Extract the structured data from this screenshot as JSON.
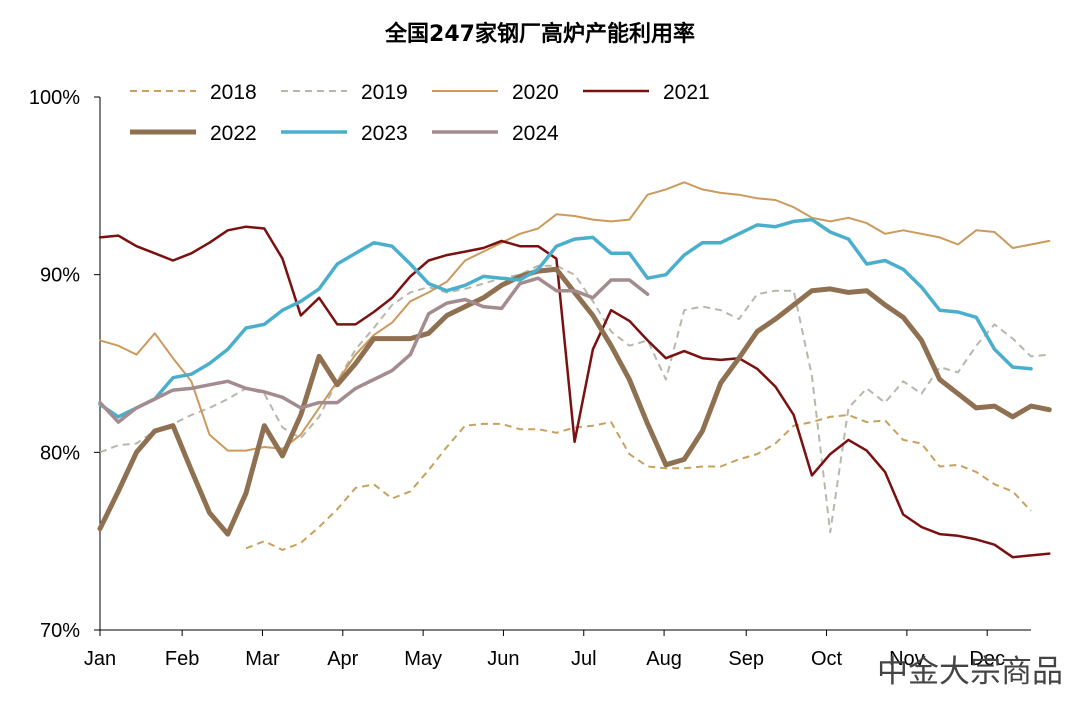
{
  "chart_data": {
    "type": "line",
    "title": "全国247家钢厂高炉产能利用率",
    "xlabel": "",
    "ylabel": "",
    "ylim": [
      70,
      100
    ],
    "yticks": [
      70,
      80,
      90,
      100
    ],
    "ytick_labels": [
      "70%",
      "80%",
      "90%",
      "100%"
    ],
    "xlim": [
      1,
      52
    ],
    "month_ticks": [
      {
        "label": "Jan",
        "week": 1
      },
      {
        "label": "Feb",
        "week": 5.5
      },
      {
        "label": "Mar",
        "week": 9.9
      },
      {
        "label": "Apr",
        "week": 14.3
      },
      {
        "label": "May",
        "week": 18.7
      },
      {
        "label": "Jun",
        "week": 23.1
      },
      {
        "label": "Jul",
        "week": 27.5
      },
      {
        "label": "Aug",
        "week": 31.9
      },
      {
        "label": "Sep",
        "week": 36.4
      },
      {
        "label": "Oct",
        "week": 40.8
      },
      {
        "label": "Nov",
        "week": 45.2
      },
      {
        "label": "Dec",
        "week": 49.6
      }
    ],
    "legend_position": "top",
    "series": [
      {
        "name": "2018",
        "color": "#c9a15e",
        "width": 2,
        "dash": "7,5",
        "x_start": 9,
        "values": [
          74.6,
          75.0,
          74.5,
          74.9,
          75.8,
          76.8,
          78.0,
          78.2,
          77.4,
          77.8,
          79.0,
          80.3,
          81.5,
          81.6,
          81.6,
          81.3,
          81.3,
          81.1,
          81.4,
          81.5,
          81.7,
          79.9,
          79.2,
          79.1,
          79.1,
          79.2,
          79.2,
          79.6,
          79.9,
          80.5,
          81.5,
          81.7,
          82.0,
          82.1,
          81.7,
          81.8,
          80.7,
          80.5,
          79.2,
          79.3,
          78.9,
          78.2,
          77.8,
          76.7
        ]
      },
      {
        "name": "2019",
        "color": "#b9b7ac",
        "width": 2,
        "dash": "7,5",
        "x_start": 1,
        "values": [
          80.0,
          80.4,
          80.5,
          81.2,
          81.6,
          82.1,
          82.5,
          83.0,
          83.6,
          83.3,
          81.4,
          80.8,
          82.0,
          84.0,
          85.8,
          87.0,
          88.3,
          89.0,
          89.3,
          89.0,
          89.2,
          89.5,
          89.8,
          90.0,
          90.5,
          90.5,
          90.0,
          88.5,
          86.8,
          86.0,
          86.3,
          84.1,
          88.0,
          88.2,
          88.0,
          87.5,
          88.9,
          89.1,
          89.1,
          84.3,
          75.5,
          82.5,
          83.6,
          82.8,
          84.0,
          83.3,
          84.8,
          84.5,
          86.0,
          87.2,
          86.4,
          85.4,
          85.5
        ]
      },
      {
        "name": "2020",
        "color": "#cc9a5c",
        "width": 2,
        "x_start": 1,
        "values": [
          86.3,
          86.0,
          85.5,
          86.7,
          85.3,
          84.0,
          81.0,
          80.1,
          80.1,
          80.3,
          80.2,
          81.0,
          82.5,
          84.0,
          85.5,
          86.6,
          87.3,
          88.5,
          89.0,
          89.6,
          90.8,
          91.3,
          91.8,
          92.3,
          92.6,
          93.4,
          93.3,
          93.1,
          93.0,
          93.1,
          94.5,
          94.8,
          95.2,
          94.8,
          94.6,
          94.5,
          94.3,
          94.2,
          93.8,
          93.2,
          93.0,
          93.2,
          92.9,
          92.3,
          92.5,
          92.3,
          92.1,
          91.7,
          92.5,
          92.4,
          91.5,
          91.7,
          91.9
        ]
      },
      {
        "name": "2021",
        "color": "#7b1010",
        "width": 2.5,
        "x_start": 1,
        "values": [
          92.1,
          92.2,
          91.6,
          91.2,
          90.8,
          91.2,
          91.8,
          92.5,
          92.7,
          92.6,
          90.9,
          87.7,
          88.7,
          87.2,
          87.2,
          87.9,
          88.7,
          89.9,
          90.8,
          91.1,
          91.3,
          91.5,
          91.9,
          91.6,
          91.6,
          90.9,
          80.6,
          85.8,
          88.0,
          87.4,
          86.3,
          85.3,
          85.7,
          85.3,
          85.2,
          85.3,
          84.7,
          83.7,
          82.1,
          78.7,
          79.9,
          80.7,
          80.1,
          78.9,
          76.5,
          75.8,
          75.4,
          75.3,
          75.1,
          74.8,
          74.1,
          74.2,
          74.3
        ]
      },
      {
        "name": "2022",
        "color": "#8f7152",
        "width": 5,
        "x_start": 1,
        "values": [
          75.7,
          77.8,
          80.0,
          81.2,
          81.5,
          79.0,
          76.6,
          75.4,
          77.7,
          81.5,
          79.8,
          82.1,
          85.4,
          83.8,
          85.0,
          86.4,
          86.4,
          86.4,
          86.7,
          87.7,
          88.2,
          88.7,
          89.4,
          89.9,
          90.2,
          90.3,
          89.0,
          87.7,
          86.0,
          84.1,
          81.6,
          79.3,
          79.6,
          81.2,
          83.9,
          85.3,
          86.8,
          87.5,
          88.3,
          89.1,
          89.2,
          89.0,
          89.1,
          88.3,
          87.6,
          86.3,
          84.1,
          83.3,
          82.5,
          82.6,
          82.0,
          82.6,
          82.4
        ]
      },
      {
        "name": "2023",
        "color": "#4aafcc",
        "width": 3.5,
        "x_start": 1,
        "values": [
          82.7,
          82.0,
          82.5,
          83.0,
          84.2,
          84.4,
          85.0,
          85.8,
          87.0,
          87.2,
          88.0,
          88.5,
          89.2,
          90.6,
          91.2,
          91.8,
          91.6,
          90.6,
          89.5,
          89.1,
          89.4,
          89.9,
          89.8,
          89.7,
          90.3,
          91.6,
          92.0,
          92.1,
          91.2,
          91.2,
          89.8,
          90.0,
          91.1,
          91.8,
          91.8,
          92.3,
          92.8,
          92.7,
          93.0,
          93.1,
          92.4,
          92.0,
          90.6,
          90.8,
          90.3,
          89.3,
          88.0,
          87.9,
          87.6,
          85.8,
          84.8,
          84.7
        ]
      },
      {
        "name": "2024",
        "color": "#a48b8e",
        "width": 3.5,
        "x_start": 1,
        "values": [
          82.8,
          81.7,
          82.5,
          83.0,
          83.5,
          83.6,
          83.8,
          84.0,
          83.6,
          83.4,
          83.1,
          82.5,
          82.8,
          82.8,
          83.6,
          84.1,
          84.6,
          85.5,
          87.8,
          88.4,
          88.6,
          88.2,
          88.1,
          89.5,
          89.8,
          89.1,
          89.1,
          88.7,
          89.7,
          89.7,
          88.9
        ]
      }
    ]
  },
  "watermark": "中金大宗商品"
}
